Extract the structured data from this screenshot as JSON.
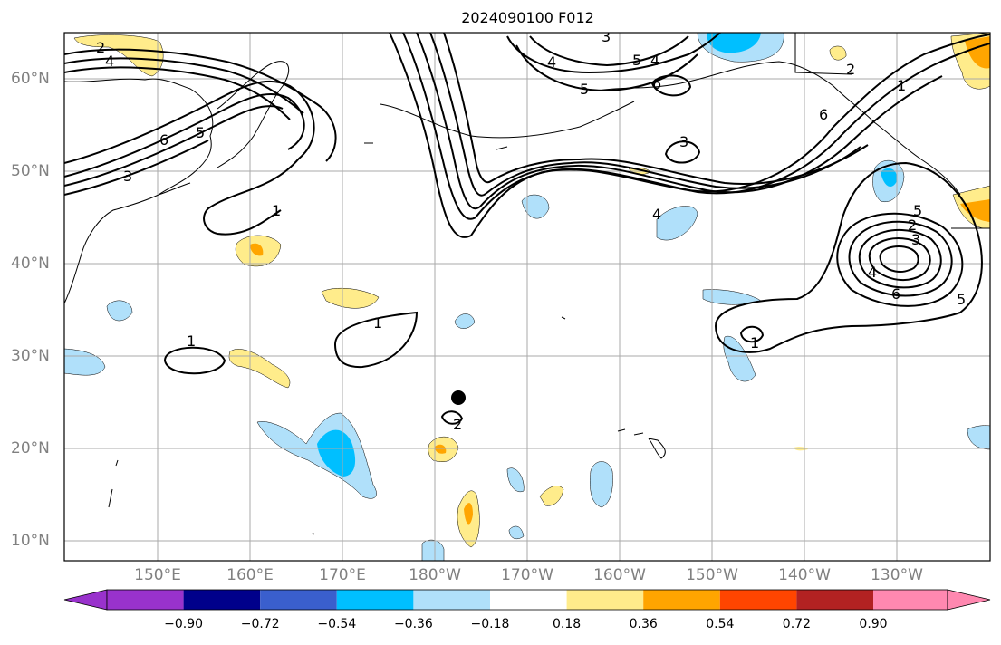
{
  "title": "2024090100 F012",
  "lat_labels": [
    "60°N",
    "50°N",
    "40°N",
    "30°N",
    "20°N",
    "10°N"
  ],
  "lon_labels": [
    "150°E",
    "160°E",
    "170°E",
    "180°W",
    "170°W",
    "160°W",
    "150°W",
    "140°W",
    "130°W"
  ],
  "contour_labels": [
    "2",
    "4",
    "6",
    "5",
    "3",
    "1",
    "1",
    "1",
    "3",
    "4",
    "5",
    "4",
    "5",
    "6",
    "3",
    "4",
    "1",
    "2",
    "6",
    "5",
    "2",
    "3",
    "4",
    "6",
    "5",
    "1",
    "2",
    "1",
    "2"
  ],
  "colorbar": {
    "ticks": [
      "−0.90",
      "−0.72",
      "−0.54",
      "−0.36",
      "−0.18",
      "0.18",
      "0.36",
      "0.54",
      "0.72",
      "0.90"
    ],
    "colors": [
      "#9932cc",
      "#00008b",
      "#3a5fcd",
      "#00bfff",
      "#b0e0fa",
      "#ffffff",
      "#ffec8b",
      "#ffa500",
      "#ff4500",
      "#b22222",
      "#ff88b0"
    ]
  },
  "storm_marker": "filled-circle"
}
